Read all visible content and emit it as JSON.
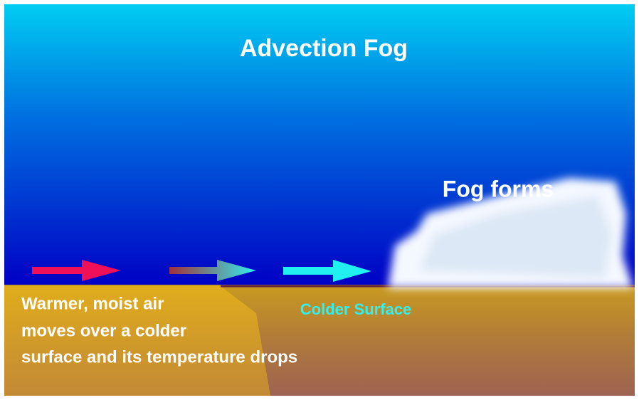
{
  "title": "Advection Fog",
  "fog_label": "Fog forms",
  "surface_label": "Colder Surface",
  "description": [
    "Warmer, moist air",
    "moves over a colder",
    "surface and its temperature drops"
  ]
}
